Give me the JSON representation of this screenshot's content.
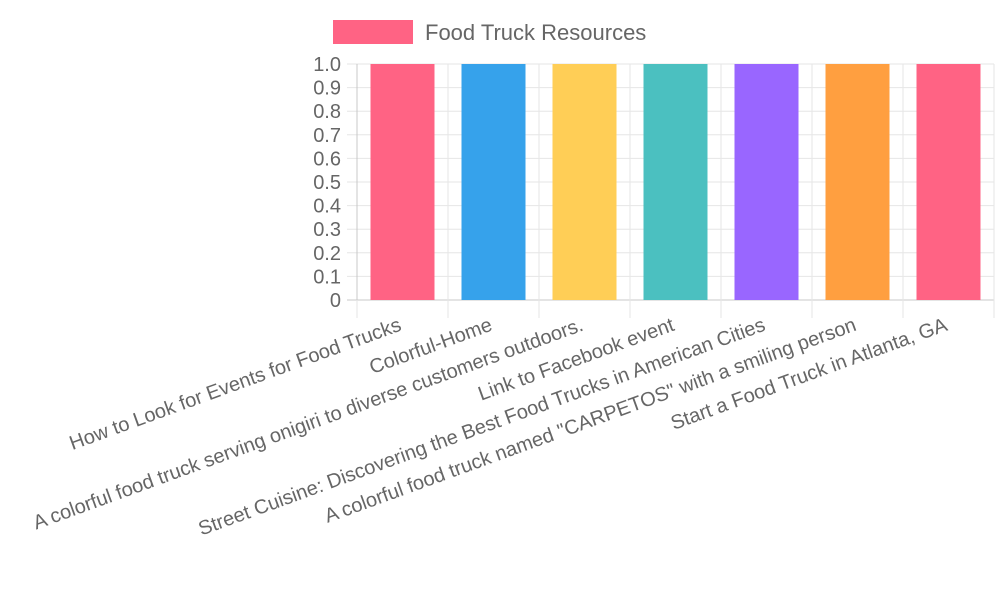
{
  "chart_data": {
    "type": "bar",
    "title": "",
    "xlabel": "",
    "ylabel": "",
    "ylim": [
      0,
      1
    ],
    "yticks": [
      "0",
      "0.1",
      "0.2",
      "0.3",
      "0.4",
      "0.5",
      "0.6",
      "0.7",
      "0.8",
      "0.9",
      "1.0"
    ],
    "grid": true,
    "legend_position": "top",
    "categories": [
      "How to Look for Events for Food Trucks",
      "Colorful-Home",
      "A colorful food truck serving onigiri to diverse customers outdoors.",
      "Link to Facebook event",
      "Street Cuisine: Discovering the Best Food Trucks in American Cities",
      "A colorful food truck named \"CARPETOS\" with a smiling person",
      "Start a Food Truck in Atlanta, GA"
    ],
    "series": [
      {
        "name": "Food Truck Resources",
        "values": [
          1,
          1,
          1,
          1,
          1,
          1,
          1
        ],
        "colors": [
          "#ff6384",
          "#36a2eb",
          "#ffce56",
          "#4bc0c0",
          "#9966ff",
          "#ff9f40",
          "#ff6384"
        ]
      }
    ],
    "legend_color": "#ff6384"
  }
}
